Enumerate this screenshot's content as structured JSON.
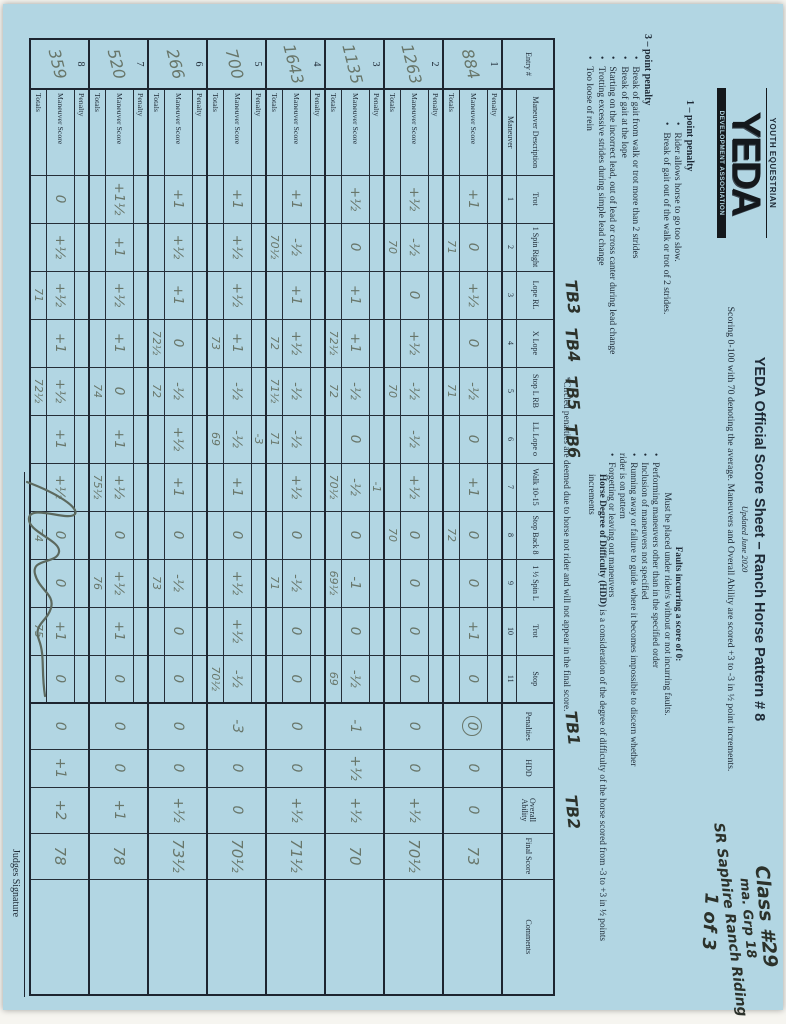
{
  "sheet": {
    "logo": {
      "top": "YOUTH EQUESTRIAN",
      "main": "YEDA",
      "bottom": "DEVELOPMENT ASSOCIATION"
    },
    "penalty_rules": [
      {
        "title": "1 – point penalty",
        "items": [
          "Rider allows horse to go too slow.",
          "Break of gait out of the walk or trot of 2 strides."
        ]
      },
      {
        "title": "3 – point penalty",
        "items": [
          "Break of gait from walk or trot more than 2 strides",
          "Break of gait at the lope",
          "Starting on the incorrect lead, out of lead or cross canter during lead change",
          "Trotting excessive strides during simple lead change",
          "Too loose of rein"
        ]
      }
    ],
    "title": "YEDA Official Score Sheet – Ranch Horse Pattern # 8",
    "updated": "Updated June 2020",
    "scoring_note": "Scoring 0-100 with 70 denoting the average. Maneuvers and Overall Ability are scored +3 to -3 in ½ point increments.",
    "faults": {
      "title": "Faults incurring a score of 0:",
      "intro": "Must be placed under rider/s without or not incurring faults.",
      "items": [
        "Performing maneuvers other than in the specified order",
        "Inclusion of maneuvers not specified",
        "Running away or failure to guide where it becomes impossible to discern whether rider is on pattern",
        "Forgetting or leaving out maneuvers"
      ]
    },
    "hdd_note_bold": "Horse Degree of Difficulty (HDD)",
    "hdd_note_rest": " is a consideration of the degree of difficulty of the horse scored from -3 to +3 in ½ points increments",
    "circled_note": "*Circled penalties are deemed due to horse not rider and will not appear in the final score.",
    "class_info": {
      "line1": "Class #29",
      "line2": "ma. Grp 18",
      "line3": "SR Saphire Ranch Riding",
      "line4": "1 of 3"
    },
    "annotations": {
      "tb_above_maneuvers": [
        {
          "label": "TB3",
          "col": 3
        },
        {
          "label": "TB4",
          "col": 4
        },
        {
          "label": "TB5",
          "col": 5
        },
        {
          "label": "TB6",
          "col": 6
        }
      ],
      "tb_penalties": "TB1",
      "tb_overall": "TB2"
    },
    "judges_signature_label": "Judges Signature"
  },
  "table": {
    "entry_header": "Entry #",
    "maneuver_header_line1": "Maneuver Description",
    "maneuver_header_line2": "Maneuver",
    "row_labels": [
      "Penalty",
      "Maneuver Score",
      "Totals"
    ],
    "maneuvers": [
      {
        "num": "1",
        "name": "Trot"
      },
      {
        "num": "2",
        "name": "1 Spin Right"
      },
      {
        "num": "3",
        "name": "Lope RL"
      },
      {
        "num": "4",
        "name": "X Lope"
      },
      {
        "num": "5",
        "name": "Stop L RB"
      },
      {
        "num": "6",
        "name": "LL Lope o"
      },
      {
        "num": "7",
        "name": "Walk 10-15"
      },
      {
        "num": "8",
        "name": "Stop Back 8"
      },
      {
        "num": "9",
        "name": "1 ½ Spin L"
      },
      {
        "num": "10",
        "name": "Trot"
      },
      {
        "num": "11",
        "name": "Stop"
      }
    ],
    "extra_columns": [
      "Penalties",
      "HDD",
      "Overall Ability",
      "Final Score",
      "Comments"
    ],
    "entries": [
      {
        "index": "1",
        "entry_no": "884",
        "penalty": [
          "",
          "",
          "",
          "",
          "",
          "",
          "",
          "",
          "",
          "",
          ""
        ],
        "scores": [
          "+1",
          "0",
          "+½",
          "0",
          "-½",
          "0",
          "+1",
          "0",
          "0",
          "+1",
          "0"
        ],
        "totals": [
          "",
          "71",
          "",
          "",
          "71",
          "",
          "",
          "72",
          "",
          "",
          ""
        ],
        "penalties": "0",
        "penalties_circled": true,
        "hdd": "0",
        "overall": "0",
        "final": "73",
        "comments": ""
      },
      {
        "index": "2",
        "entry_no": "1263",
        "penalty": [
          "",
          "",
          "",
          "",
          "",
          "",
          "",
          "",
          "",
          "",
          ""
        ],
        "scores": [
          "+½",
          "-½",
          "0",
          "+½",
          "-½",
          "-½",
          "+½",
          "0",
          "0",
          "0",
          "0"
        ],
        "totals": [
          "",
          "70",
          "",
          "",
          "70",
          "",
          "",
          "70",
          "",
          "",
          ""
        ],
        "penalties": "0",
        "penalties_circled": false,
        "hdd": "0",
        "overall": "+½",
        "final": "70½",
        "comments": ""
      },
      {
        "index": "3",
        "entry_no": "1135",
        "penalty": [
          "",
          "",
          "",
          "",
          "",
          "",
          "-1",
          "",
          "",
          "",
          ""
        ],
        "scores": [
          "+½",
          "0",
          "+1",
          "+1",
          "-½",
          "0",
          "-½",
          "0",
          "-1",
          "0",
          "-½"
        ],
        "totals": [
          "",
          "",
          "",
          "72½",
          "72",
          "",
          "70½",
          "",
          "69½",
          "",
          "69"
        ],
        "penalties": "-1",
        "penalties_circled": false,
        "hdd": "+½",
        "overall": "+½",
        "final": "70",
        "comments": ""
      },
      {
        "index": "4",
        "entry_no": "1643",
        "penalty": [
          "",
          "",
          "",
          "",
          "",
          "",
          "",
          "",
          "",
          "",
          ""
        ],
        "scores": [
          "+1",
          "-½",
          "+1",
          "+½",
          "-½",
          "-½",
          "+½",
          "0",
          "-½",
          "0",
          "0"
        ],
        "totals": [
          "",
          "70½",
          "",
          "72",
          "71½",
          "71",
          "",
          "",
          "71",
          "",
          ""
        ],
        "penalties": "0",
        "penalties_circled": false,
        "hdd": "0",
        "overall": "+½",
        "final": "71½",
        "comments": ""
      },
      {
        "index": "5",
        "entry_no": "700",
        "penalty": [
          "",
          "",
          "",
          "",
          "",
          "-3",
          "",
          "",
          "",
          "",
          ""
        ],
        "scores": [
          "+1",
          "+½",
          "+½",
          "+1",
          "-½",
          "-½",
          "+1",
          "0",
          "+½",
          "+½",
          "-½"
        ],
        "totals": [
          "",
          "",
          "",
          "73",
          "",
          "69",
          "",
          "",
          "",
          "",
          "70½"
        ],
        "penalties": "-3",
        "penalties_circled": false,
        "hdd": "0",
        "overall": "0",
        "final": "70½",
        "comments": ""
      },
      {
        "index": "6",
        "entry_no": "266",
        "penalty": [
          "",
          "",
          "",
          "",
          "",
          "",
          "",
          "",
          "",
          "",
          ""
        ],
        "scores": [
          "+1",
          "+½",
          "+1",
          "0",
          "-½",
          "+½",
          "+1",
          "0",
          "-½",
          "0",
          "0"
        ],
        "totals": [
          "",
          "",
          "",
          "72½",
          "72",
          "",
          "",
          "",
          "73",
          "",
          ""
        ],
        "penalties": "0",
        "penalties_circled": false,
        "hdd": "0",
        "overall": "+½",
        "final": "73½",
        "comments": ""
      },
      {
        "index": "7",
        "entry_no": "520",
        "penalty": [
          "",
          "",
          "",
          "",
          "",
          "",
          "",
          "",
          "",
          "",
          ""
        ],
        "scores": [
          "+1½",
          "+1",
          "+½",
          "+1",
          "0",
          "+1",
          "+½",
          "0",
          "+½",
          "+1",
          "0"
        ],
        "totals": [
          "",
          "",
          "",
          "",
          "74",
          "",
          "75½",
          "",
          "76",
          "",
          ""
        ],
        "penalties": "0",
        "penalties_circled": false,
        "hdd": "0",
        "overall": "+1",
        "final": "78",
        "comments": ""
      },
      {
        "index": "8",
        "entry_no": "359",
        "penalty": [
          "",
          "",
          "",
          "",
          "",
          "",
          "",
          "",
          "",
          "",
          ""
        ],
        "scores": [
          "0",
          "+½",
          "+½",
          "+1",
          "+½",
          "+1",
          "+½",
          "0",
          "0",
          "+1",
          "0"
        ],
        "totals": [
          "",
          "",
          "71",
          "",
          "72½",
          "",
          "",
          "74",
          "",
          "75",
          ""
        ],
        "penalties": "0",
        "penalties_circled": false,
        "hdd": "+1",
        "overall": "+2",
        "final": "78",
        "comments": ""
      }
    ]
  },
  "colors": {
    "paper": "#b2d6e3",
    "line": "#252e38",
    "pencil": "#68766a",
    "marker": "#2c322b"
  }
}
